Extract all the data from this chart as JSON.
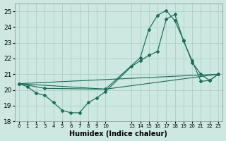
{
  "xlabel": "Humidex (Indice chaleur)",
  "bg_color": "#cce8e0",
  "grid_color": "#aad0c8",
  "line_color": "#1a6b5a",
  "xlim": [
    -0.5,
    23.5
  ],
  "ylim": [
    18.0,
    25.5
  ],
  "yticks": [
    18,
    19,
    20,
    21,
    22,
    23,
    24,
    25
  ],
  "xtick_positions": [
    0,
    1,
    2,
    3,
    4,
    5,
    6,
    7,
    8,
    9,
    10,
    13,
    14,
    15,
    16,
    17,
    18,
    19,
    20,
    21,
    22,
    23
  ],
  "xtick_labels": [
    "0",
    "1",
    "2",
    "3",
    "4",
    "5",
    "6",
    "7",
    "8",
    "9",
    "10",
    "13",
    "14",
    "15",
    "16",
    "17",
    "18",
    "19",
    "20",
    "21",
    "22",
    "23"
  ],
  "line1_x": [
    0,
    1,
    2,
    3,
    4,
    5,
    6,
    7,
    8,
    9,
    10,
    13,
    14,
    15,
    16,
    17,
    18,
    19,
    20,
    21,
    22,
    23
  ],
  "line1_y": [
    20.4,
    20.2,
    19.8,
    19.65,
    19.2,
    18.7,
    18.55,
    18.55,
    19.2,
    19.5,
    19.9,
    21.5,
    21.85,
    22.2,
    22.45,
    24.5,
    24.8,
    23.1,
    21.85,
    20.55,
    20.6,
    21.0
  ],
  "line2_x": [
    0,
    3,
    10,
    14,
    15,
    16,
    17,
    18,
    19,
    20,
    21,
    22,
    23
  ],
  "line2_y": [
    20.4,
    20.1,
    20.05,
    22.05,
    23.85,
    24.75,
    25.05,
    24.4,
    23.15,
    21.75,
    21.0,
    20.6,
    21.0
  ],
  "line3_x": [
    0,
    23
  ],
  "line3_y": [
    20.4,
    21.0
  ],
  "line4_x": [
    0,
    10,
    23
  ],
  "line4_y": [
    20.4,
    20.05,
    21.0
  ]
}
